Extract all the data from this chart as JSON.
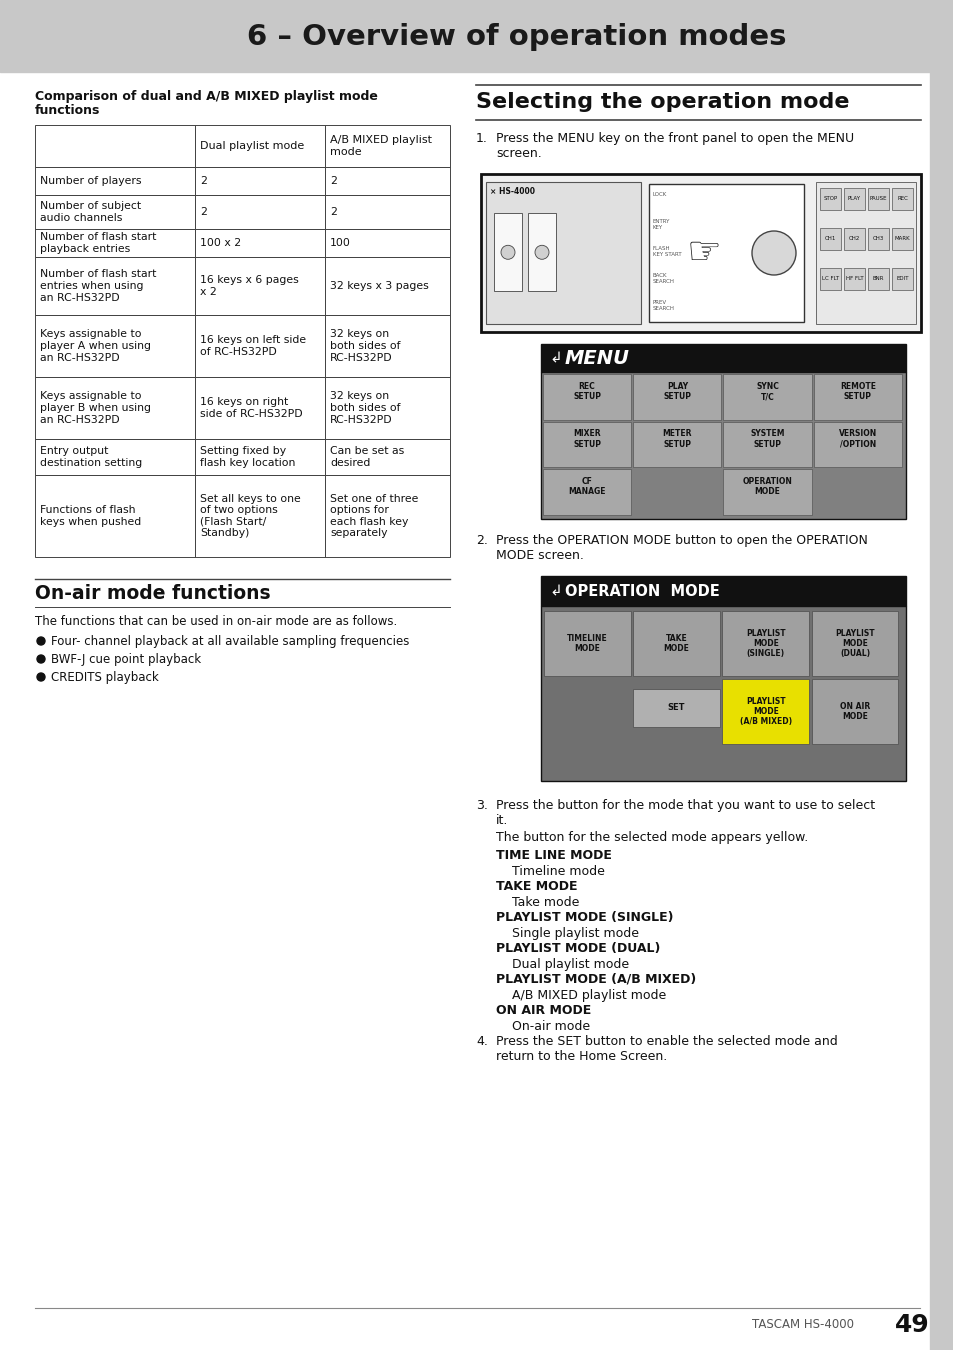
{
  "page_bg": "#ffffff",
  "header_bg": "#c8c8c8",
  "header_text": "6 – Overview of operation modes",
  "header_text_color": "#1a1a1a",
  "page_number": "49",
  "brand": "TASCAM HS-4000",
  "left_col_title": "Comparison of dual and A/B MIXED playlist mode\nfunctions",
  "table_headers": [
    "",
    "Dual playlist mode",
    "A/B MIXED playlist\nmode"
  ],
  "table_rows": [
    [
      "Number of players",
      "2",
      "2"
    ],
    [
      "Number of subject\naudio channels",
      "2",
      "2"
    ],
    [
      "Number of flash start\nplayback entries",
      "100 x 2",
      "100"
    ],
    [
      "Number of flash start\nentries when using\nan RC-HS32PD",
      "16 keys x 6 pages\nx 2",
      "32 keys x 3 pages"
    ],
    [
      "Keys assignable to\nplayer A when using\nan RC-HS32PD",
      "16 keys on left side\nof RC-HS32PD",
      "32 keys on\nboth sides of\nRC-HS32PD"
    ],
    [
      "Keys assignable to\nplayer B when using\nan RC-HS32PD",
      "16 keys on right\nside of RC-HS32PD",
      "32 keys on\nboth sides of\nRC-HS32PD"
    ],
    [
      "Entry output\ndestination setting",
      "Setting fixed by\nflash key location",
      "Can be set as\ndesired"
    ],
    [
      "Functions of flash\nkeys when pushed",
      "Set all keys to one\nof two options\n(Flash Start/\nStandby)",
      "Set one of three\noptions for\neach flash key\nseparately"
    ]
  ],
  "section2_title": "On-air mode functions",
  "section2_body": "The functions that can be used in on-air mode are as follows.",
  "section2_bullets": [
    "Four- channel playback at all available sampling frequencies",
    "BWF-J cue point playback",
    "CREDITS playback"
  ],
  "right_title": "Selecting the operation mode",
  "mode_items": [
    [
      "TIME LINE MODE",
      "Timeline mode"
    ],
    [
      "TAKE MODE",
      "Take mode"
    ],
    [
      "PLAYLIST MODE (SINGLE)",
      "Single playlist mode"
    ],
    [
      "PLAYLIST MODE (DUAL)",
      "Dual playlist mode"
    ],
    [
      "PLAYLIST MODE (A/B MIXED)",
      "A/B MIXED playlist mode"
    ],
    [
      "ON AIR MODE",
      "On-air mode"
    ]
  ]
}
